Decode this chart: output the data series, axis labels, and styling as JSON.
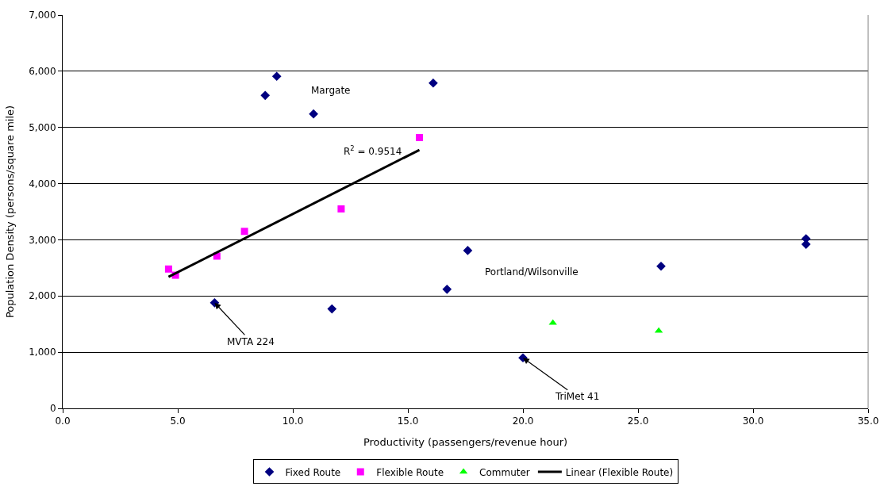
{
  "chart_data": {
    "type": "scatter",
    "xlabel": "Productivity (passengers/revenue hour)",
    "ylabel": "Population Density (persons/square mile)",
    "xlim": [
      0,
      35
    ],
    "xticks": [
      {
        "value": 0,
        "label": "0.0"
      },
      {
        "value": 5,
        "label": "5.0"
      },
      {
        "value": 10,
        "label": "10.0"
      },
      {
        "value": 15,
        "label": "15.0"
      },
      {
        "value": 20,
        "label": "20.0"
      },
      {
        "value": 25,
        "label": "25.0"
      },
      {
        "value": 30,
        "label": "30.0"
      },
      {
        "value": 35,
        "label": "35.0"
      }
    ],
    "ylim": [
      0,
      7000
    ],
    "yticks": [
      0,
      {
        "value": 1000,
        "label": "1,000"
      },
      {
        "value": 2000,
        "label": "2,000"
      },
      {
        "value": 3000,
        "label": "3,000"
      },
      {
        "value": 4000,
        "label": "4,000"
      },
      {
        "value": 5000,
        "label": "5,000"
      },
      {
        "value": 6000,
        "label": "6,000"
      },
      {
        "value": 7000,
        "label": "7,000"
      }
    ],
    "grid": "y",
    "legend": "bottom",
    "series": [
      {
        "name": "Fixed Route",
        "marker": "diamond",
        "color": "#000080",
        "x": [
          8.8,
          9.3,
          10.9,
          16.1,
          6.6,
          11.7,
          16.7,
          17.6,
          20.0,
          26.0,
          32.3,
          32.3
        ],
        "values": [
          5570,
          5910,
          5240,
          5790,
          1880,
          1770,
          2120,
          2810,
          900,
          2530,
          3020,
          2920
        ]
      },
      {
        "name": "Flexible Route",
        "marker": "square",
        "color": "#ff00ff",
        "x": [
          4.6,
          4.9,
          6.7,
          7.9,
          12.1,
          15.5
        ],
        "values": [
          2480,
          2370,
          2710,
          3150,
          3550,
          4820
        ]
      },
      {
        "name": "Commuter",
        "marker": "triangle",
        "color": "#00ff00",
        "x": [
          21.3,
          25.9
        ],
        "values": [
          1520,
          1380
        ]
      },
      {
        "name": "Linear (Flexible Route)",
        "type": "line",
        "line_style": "solid",
        "color": "#000000",
        "x": [
          4.6,
          15.5
        ],
        "values": [
          2340,
          4600
        ]
      }
    ],
    "annotations": [
      {
        "text": "Margate",
        "x": 10.9,
        "y": 5240
      },
      "R$^{2}$ = 0.9514",
      "Portland/Wilsonville",
      {
        "text": "MVTA 224",
        "x": 6.6,
        "y": 1880
      },
      {
        "text": "TriMet 41",
        "x": 20.0,
        "y": 900
      }
    ]
  }
}
